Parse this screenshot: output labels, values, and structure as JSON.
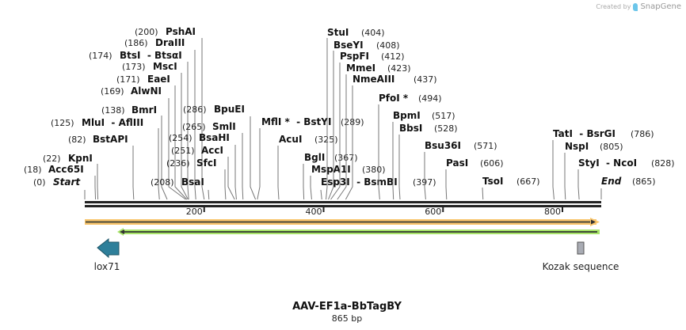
{
  "credit": {
    "prefix": "Created by",
    "brand": "SnapGene"
  },
  "map": {
    "title": "AAV-EF1a-BbTagBY",
    "length_label": "865 bp",
    "length": 865,
    "ticks": [
      "200",
      "400",
      "600",
      "800"
    ],
    "start": {
      "label": "Start",
      "pos": "(0)"
    },
    "end": {
      "label": "End",
      "pos": "(865)"
    }
  },
  "enzymes": [
    {
      "name": "Acc65I",
      "pos": "(18)"
    },
    {
      "name": "KpnI",
      "pos": "(22)"
    },
    {
      "name": "BstAPI",
      "pos": "(82)"
    },
    {
      "name": "MluI  - AflIII",
      "pos": "(125)"
    },
    {
      "name": "BmrI",
      "pos": "(138)"
    },
    {
      "name": "AlwNI",
      "pos": "(169)"
    },
    {
      "name": "EaeI",
      "pos": "(171)"
    },
    {
      "name": "MscI",
      "pos": "(173)"
    },
    {
      "name": "BtsI  - BtsαI",
      "pos": "(174)"
    },
    {
      "name": "DraIII",
      "pos": "(186)"
    },
    {
      "name": "PshAI",
      "pos": "(200)"
    },
    {
      "name": "BsaI",
      "pos": "(208)"
    },
    {
      "name": "SfcI",
      "pos": "(236)"
    },
    {
      "name": "AccI",
      "pos": "(251)"
    },
    {
      "name": "BsaHI",
      "pos": "(254)"
    },
    {
      "name": "SmlI",
      "pos": "(265)"
    },
    {
      "name": "BpuEI",
      "pos": "(286)"
    },
    {
      "name": "MflI *  - BstYI",
      "pos": "(289)"
    },
    {
      "name": "AcuI",
      "pos": "(325)"
    },
    {
      "name": "BglI",
      "pos": "(367)"
    },
    {
      "name": "MspA1I",
      "pos": "(380)"
    },
    {
      "name": "Esp3I  - BsmBI",
      "pos": "(397)"
    },
    {
      "name": "StuI",
      "pos": "(404)"
    },
    {
      "name": "BseYI",
      "pos": "(408)"
    },
    {
      "name": "PspFI",
      "pos": "(412)"
    },
    {
      "name": "MmeI",
      "pos": "(423)"
    },
    {
      "name": "NmeAIII",
      "pos": "(437)"
    },
    {
      "name": "PfoI *",
      "pos": "(494)"
    },
    {
      "name": "BpmI",
      "pos": "(517)"
    },
    {
      "name": "BbsI",
      "pos": "(528)"
    },
    {
      "name": "Bsu36I",
      "pos": "(571)"
    },
    {
      "name": "PasI",
      "pos": "(606)"
    },
    {
      "name": "TsoI",
      "pos": "(667)"
    },
    {
      "name": "TatI  - BsrGI",
      "pos": "(786)"
    },
    {
      "name": "NspI",
      "pos": "(805)"
    },
    {
      "name": "StyI  - NcoI",
      "pos": "(828)"
    }
  ],
  "features": [
    {
      "name": "lox71",
      "direction": "reverse",
      "color": "#2e7f9a"
    },
    {
      "name": "Kozak sequence",
      "color": "#a9acb4"
    }
  ],
  "colors": {
    "orange_bar": "#f9c56c",
    "green_bar": "#a8e46a",
    "backbone": "#222222"
  }
}
